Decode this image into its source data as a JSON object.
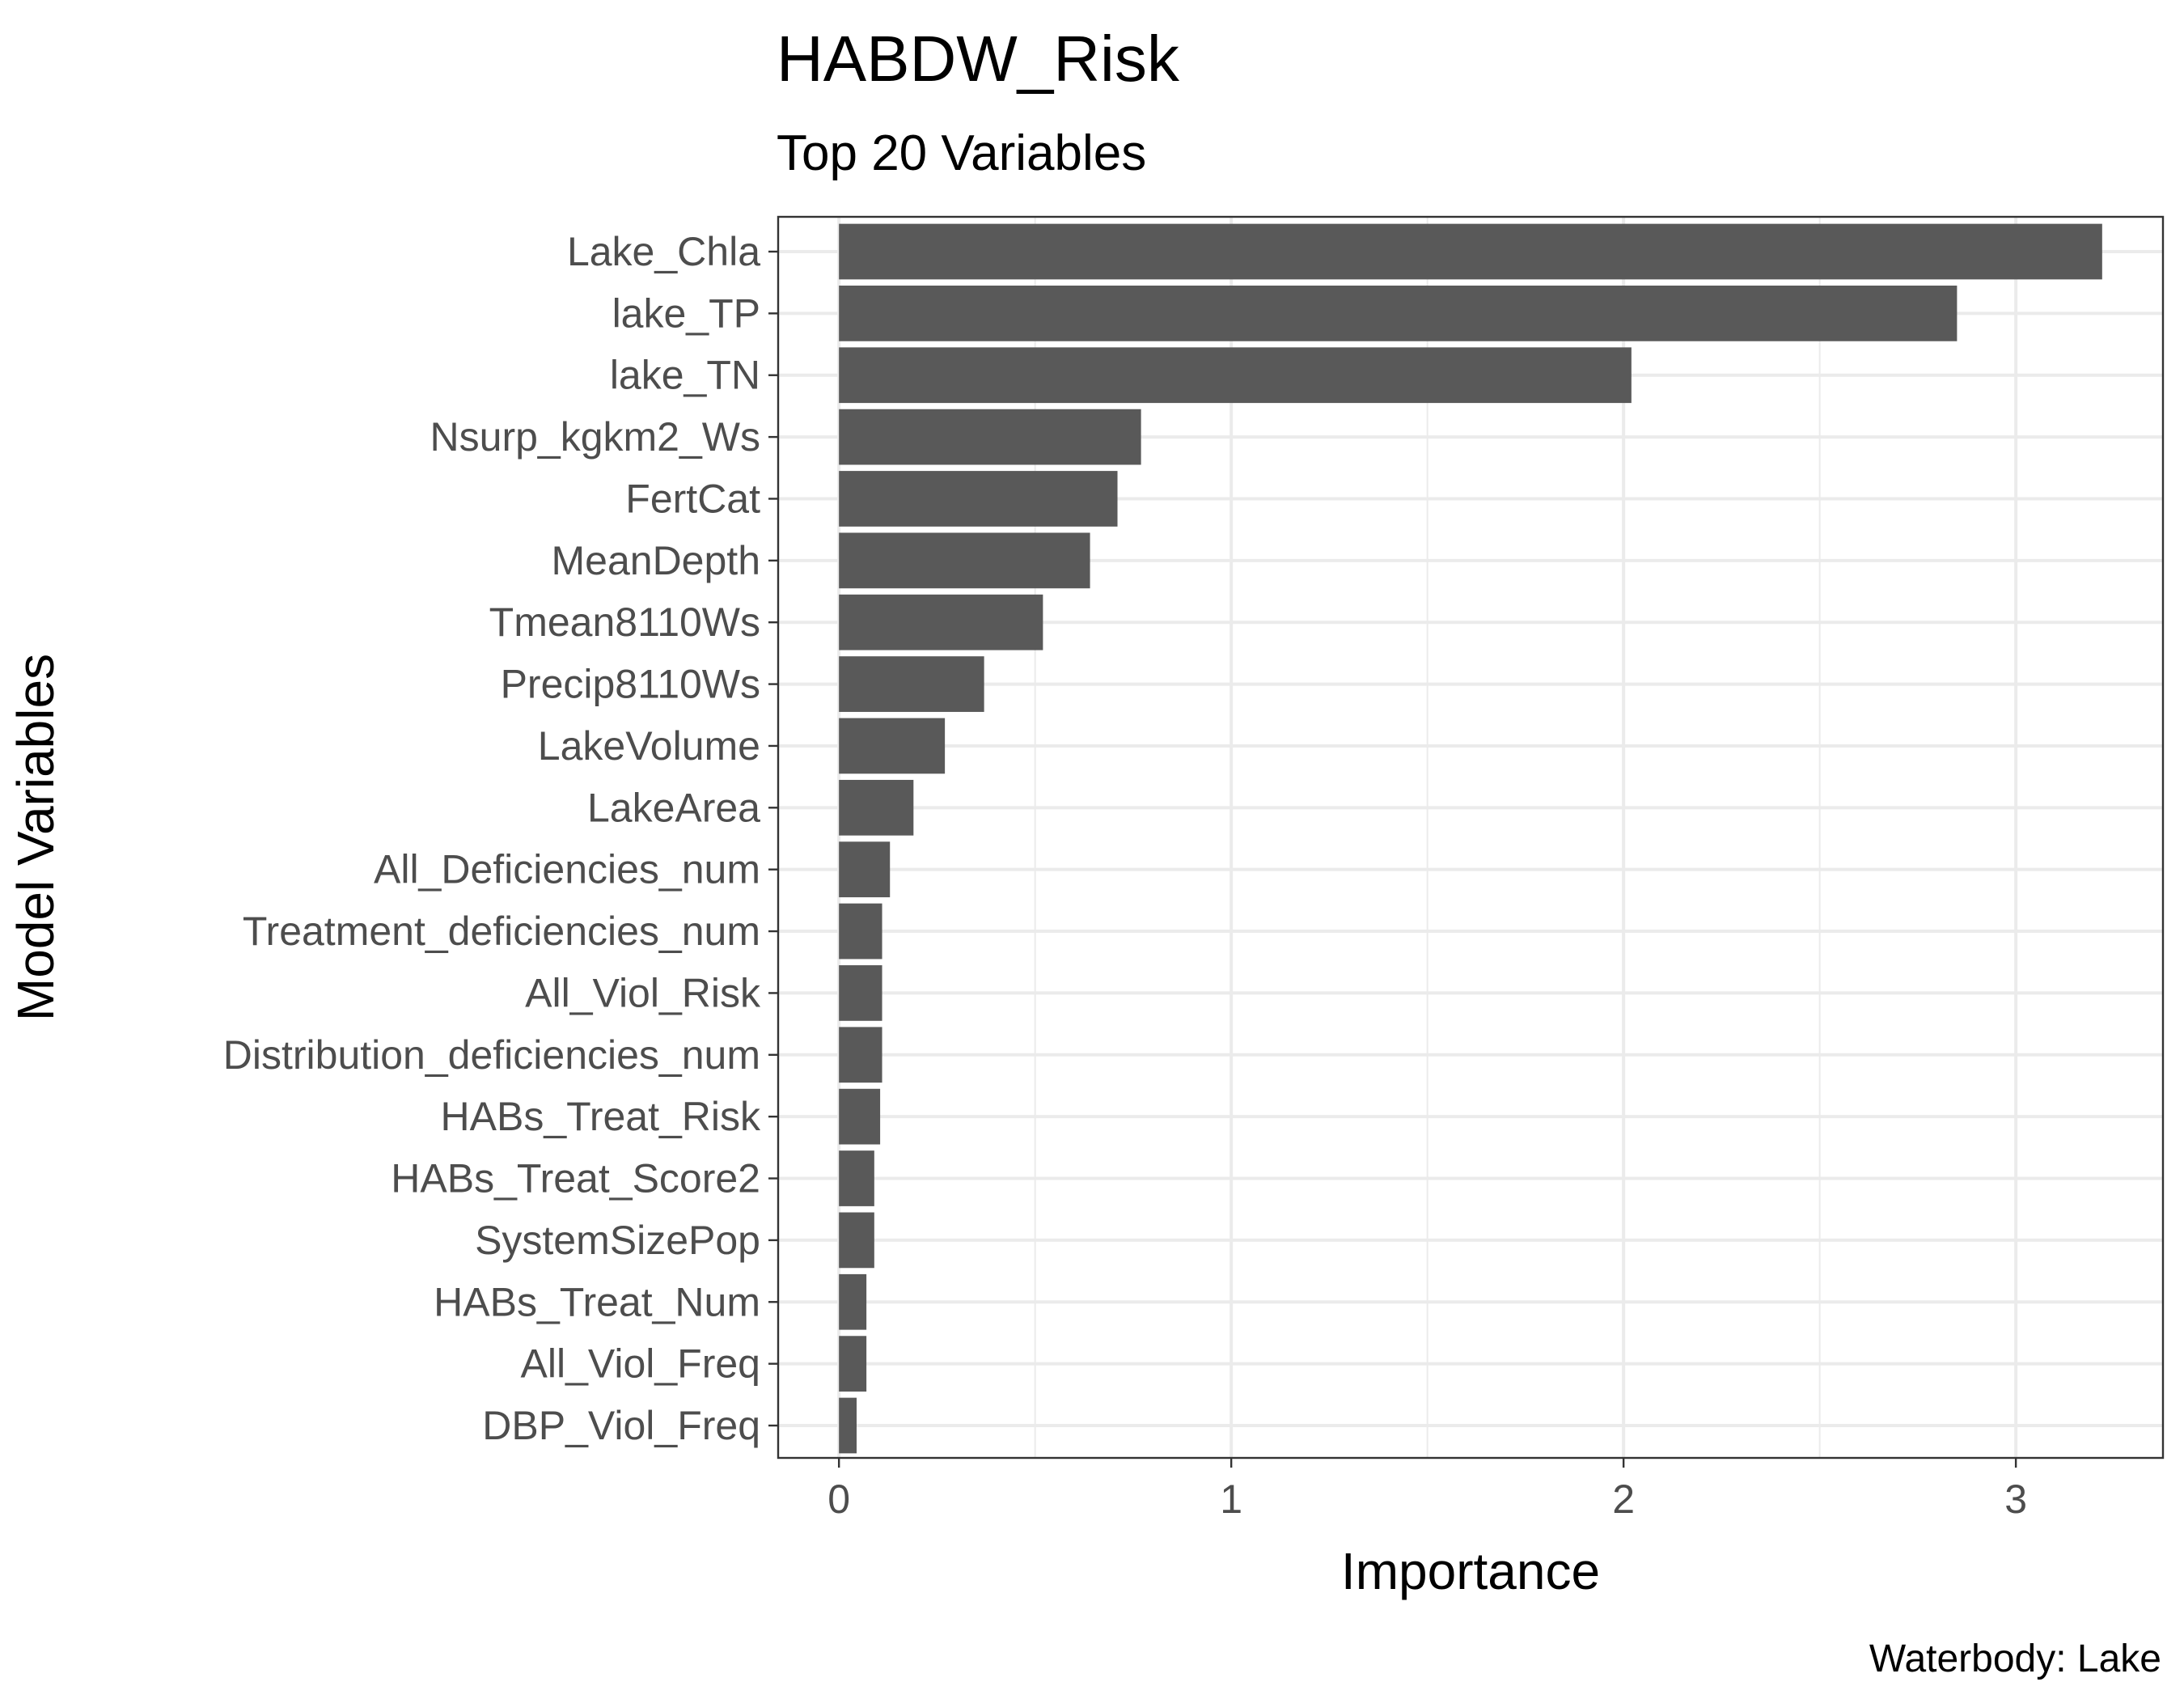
{
  "chart_data": {
    "type": "bar",
    "orientation": "horizontal",
    "title": "HABDW_Risk",
    "subtitle": "Top 20 Variables",
    "xlabel": "Importance",
    "ylabel": "Model Variables",
    "caption": "Waterbody: Lake",
    "xlim": [
      -0.155,
      3.375
    ],
    "xticks": [
      "0",
      "1",
      "2",
      "3"
    ],
    "xtick_values": [
      0,
      1,
      2,
      3
    ],
    "grid": true,
    "legend": "none",
    "bar_color": "#595959",
    "categories": [
      "Lake_Chla",
      "lake_TP",
      "lake_TN",
      "Nsurp_kgkm2_Ws",
      "FertCat",
      "MeanDepth",
      "Tmean8110Ws",
      "Precip8110Ws",
      "LakeVolume",
      "LakeArea",
      "All_Deficiencies_num",
      "Treatment_deficiencies_num",
      "All_Viol_Risk",
      "Distribution_deficiencies_num",
      "HABs_Treat_Risk",
      "HABs_Treat_Score2",
      "SystemSizePop",
      "HABs_Treat_Num",
      "All_Viol_Freq",
      "DBP_Viol_Freq"
    ],
    "values": [
      3.22,
      2.85,
      2.02,
      0.77,
      0.71,
      0.64,
      0.52,
      0.37,
      0.27,
      0.19,
      0.13,
      0.11,
      0.11,
      0.11,
      0.105,
      0.09,
      0.09,
      0.07,
      0.07,
      0.045
    ]
  }
}
